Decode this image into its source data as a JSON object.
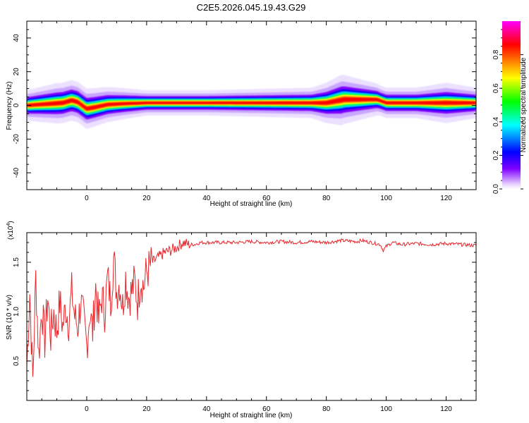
{
  "figure": {
    "title": "C2E5.2026.045.19.43.G29"
  },
  "chart_data": [
    {
      "type": "heatmap",
      "xlabel": "Height of straight line (km)",
      "ylabel": "Frequency (Hz)",
      "xlim": [
        -20,
        130
      ],
      "ylim": [
        -50,
        50
      ],
      "xticks": [
        0,
        20,
        40,
        60,
        80,
        100,
        120
      ],
      "yticks": [
        -40,
        -20,
        0,
        20,
        40
      ],
      "ridge_center_hz": [
        [
          -20,
          0
        ],
        [
          -12,
          1
        ],
        [
          -8,
          1.5
        ],
        [
          -5,
          3
        ],
        [
          -3,
          2
        ],
        [
          0,
          -2
        ],
        [
          3,
          -1
        ],
        [
          7,
          0.5
        ],
        [
          12,
          1
        ],
        [
          20,
          1.5
        ],
        [
          30,
          1.5
        ],
        [
          60,
          1.5
        ],
        [
          80,
          1.5
        ],
        [
          86,
          3.5
        ],
        [
          97,
          3.5
        ],
        [
          100,
          1.5
        ],
        [
          130,
          1.5
        ]
      ],
      "ridge_halfwidth_hz": [
        [
          -20,
          3
        ],
        [
          -10,
          4
        ],
        [
          0,
          4
        ],
        [
          20,
          2.5
        ],
        [
          40,
          2.5
        ],
        [
          75,
          3
        ],
        [
          85,
          5
        ],
        [
          98,
          3
        ],
        [
          110,
          3
        ],
        [
          120,
          4
        ],
        [
          130,
          3
        ]
      ],
      "colorbar": {
        "label": "Normalized spectral amplitude",
        "range": [
          0,
          1
        ],
        "ticks": [
          0.0,
          0.2,
          0.4,
          0.6,
          0.8
        ],
        "tick_labels": [
          "0.0",
          "0.2",
          "0.4",
          "0.6",
          "0.8"
        ],
        "colormap": [
          "#ffffff",
          "#8000ff",
          "#0000ff",
          "#00ffff",
          "#00ff00",
          "#ffff00",
          "#ff8000",
          "#ff0000",
          "#ff00ff"
        ]
      },
      "grid": false
    },
    {
      "type": "line",
      "xlabel": "Height of straight line (km)",
      "ylabel": "SNR (10 * v/v)",
      "scale_label": "(x10",
      "scale_exponent": "4",
      "scale_suffix": ")",
      "xlim": [
        -20,
        130
      ],
      "ylim": [
        0.1,
        1.8
      ],
      "xticks": [
        0,
        20,
        40,
        60,
        80,
        100,
        120
      ],
      "yticks": [
        0.5,
        1.0,
        1.5
      ],
      "ytick_labels": [
        "0.5",
        "1.0",
        "1.5"
      ],
      "series": [
        {
          "color": "#e8262b",
          "x": [
            -20,
            -19,
            -18,
            -17,
            -16,
            -15,
            -14,
            -13,
            -12,
            -11,
            -10,
            -9,
            -8,
            -7,
            -6,
            -5,
            -4,
            -3,
            -2,
            -1,
            0,
            1,
            2,
            3,
            4,
            5,
            6,
            7,
            8,
            9,
            10,
            11,
            12,
            13,
            14,
            15,
            16,
            17,
            18,
            19,
            20,
            22,
            24,
            26,
            28,
            30,
            32,
            34,
            36,
            38,
            40,
            45,
            50,
            55,
            60,
            65,
            70,
            75,
            80,
            85,
            90,
            92,
            95,
            98,
            99,
            100,
            102,
            105,
            110,
            115,
            120,
            125,
            130
          ],
          "y": [
            0.45,
            1.2,
            0.3,
            1.35,
            0.55,
            1.05,
            0.7,
            1.15,
            0.75,
            1.0,
            0.8,
            1.1,
            0.85,
            1.05,
            0.9,
            1.2,
            0.95,
            0.85,
            1.1,
            0.9,
            0.65,
            1.0,
            0.8,
            1.25,
            0.9,
            1.15,
            1.0,
            1.35,
            1.1,
            1.55,
            1.2,
            1.3,
            1.05,
            1.35,
            1.15,
            1.2,
            1.3,
            1.1,
            1.35,
            1.25,
            1.4,
            1.5,
            1.55,
            1.6,
            1.62,
            1.65,
            1.7,
            1.68,
            1.68,
            1.7,
            1.7,
            1.7,
            1.7,
            1.71,
            1.7,
            1.71,
            1.7,
            1.71,
            1.7,
            1.72,
            1.71,
            1.72,
            1.7,
            1.68,
            1.62,
            1.66,
            1.7,
            1.68,
            1.69,
            1.68,
            1.69,
            1.68,
            1.67
          ]
        }
      ],
      "grid": false
    }
  ]
}
